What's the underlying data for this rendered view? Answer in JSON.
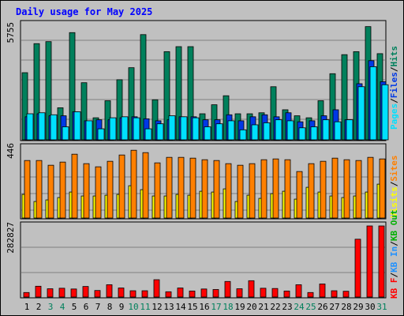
{
  "page": {
    "title": "Daily usage for May 2025"
  },
  "colors": {
    "background": "#c0c0c0",
    "hits": "#00805c",
    "files": "#0038e6",
    "pages": "#00e0ff",
    "visits": "#ffff00",
    "sites": "#ff8000",
    "kbin": "#1e90ff",
    "kbout": "#00b000",
    "kbf": "#ff0000",
    "weekend_day": "#00805c",
    "weekday": "#000000",
    "title": "#0000ff"
  },
  "chart_data": [
    {
      "type": "bar",
      "panel": "hits-files-pages",
      "ymax_label": "5755",
      "ylim": [
        0,
        5755
      ],
      "legend": [
        "Pages",
        "/",
        "Files",
        "/",
        "Hits"
      ],
      "categories": [
        "1",
        "2",
        "3",
        "4",
        "5",
        "6",
        "7",
        "8",
        "9",
        "10",
        "11",
        "12",
        "13",
        "14",
        "15",
        "16",
        "17",
        "18",
        "19",
        "20",
        "21",
        "22",
        "23",
        "24",
        "25",
        "26",
        "27",
        "28",
        "29",
        "30",
        "31"
      ],
      "weekend": [
        "3",
        "4",
        "10",
        "11",
        "17",
        "18",
        "24",
        "25",
        "31"
      ],
      "series": [
        {
          "name": "Hits",
          "values": [
            3350,
            4800,
            4900,
            1600,
            5350,
            2850,
            1100,
            1950,
            3000,
            3600,
            5250,
            2000,
            4400,
            4650,
            4650,
            1300,
            1750,
            2200,
            1300,
            1300,
            1350,
            2650,
            1500,
            1200,
            1100,
            1950,
            3300,
            4250,
            4400,
            5650,
            4300
          ]
        },
        {
          "name": "Files",
          "values": [
            1150,
            1300,
            1200,
            1200,
            1400,
            950,
            1000,
            1000,
            1100,
            1150,
            1050,
            950,
            1000,
            1150,
            1150,
            1000,
            1000,
            1250,
            950,
            1150,
            1250,
            1150,
            1350,
            900,
            950,
            1200,
            1500,
            1000,
            2800,
            3950,
            2900
          ]
        },
        {
          "name": "Pages",
          "values": [
            1300,
            1350,
            1250,
            650,
            1400,
            950,
            550,
            1100,
            1150,
            1100,
            550,
            800,
            1200,
            1150,
            1100,
            650,
            800,
            950,
            500,
            750,
            850,
            1000,
            950,
            600,
            650,
            1000,
            900,
            1000,
            2650,
            3650,
            2750
          ]
        }
      ]
    },
    {
      "type": "bar",
      "panel": "visits-sites",
      "ymax_label": "446",
      "ylim": [
        0,
        446
      ],
      "legend": [
        "Visits",
        "/",
        "Sites"
      ],
      "categories": [
        "1",
        "2",
        "3",
        "4",
        "5",
        "6",
        "7",
        "8",
        "9",
        "10",
        "11",
        "12",
        "13",
        "14",
        "15",
        "16",
        "17",
        "18",
        "19",
        "20",
        "21",
        "22",
        "23",
        "24",
        "25",
        "26",
        "27",
        "28",
        "29",
        "30",
        "31"
      ],
      "series": [
        {
          "name": "Visits",
          "values": [
            150,
            105,
            115,
            130,
            165,
            140,
            140,
            145,
            150,
            205,
            180,
            140,
            140,
            150,
            145,
            170,
            165,
            185,
            105,
            145,
            125,
            155,
            170,
            120,
            195,
            165,
            140,
            130,
            140,
            165,
            215
          ]
        },
        {
          "name": "Sites",
          "values": [
            365,
            365,
            335,
            355,
            405,
            345,
            325,
            360,
            400,
            430,
            415,
            350,
            385,
            385,
            380,
            370,
            365,
            345,
            335,
            345,
            370,
            375,
            370,
            295,
            345,
            360,
            380,
            370,
            365,
            385,
            375
          ]
        }
      ]
    },
    {
      "type": "bar",
      "panel": "kbytes",
      "ymax_label": "282827",
      "ylim": [
        0,
        282827
      ],
      "legend": [
        "KB F",
        "/",
        "KB In",
        "/",
        "KB Out"
      ],
      "categories": [
        "1",
        "2",
        "3",
        "4",
        "5",
        "6",
        "7",
        "8",
        "9",
        "10",
        "11",
        "12",
        "13",
        "14",
        "15",
        "16",
        "17",
        "18",
        "19",
        "20",
        "21",
        "22",
        "23",
        "24",
        "25",
        "26",
        "27",
        "28",
        "29",
        "30",
        "31"
      ],
      "series": [
        {
          "name": "KB F",
          "values": [
            18000,
            43000,
            33000,
            35000,
            32000,
            42000,
            26000,
            49000,
            36000,
            25000,
            25000,
            69000,
            21000,
            36000,
            24000,
            32000,
            30000,
            62000,
            33000,
            65000,
            35000,
            34000,
            24000,
            49000,
            18000,
            52000,
            25000,
            23000,
            230000,
            282827,
            282827
          ]
        }
      ]
    }
  ]
}
